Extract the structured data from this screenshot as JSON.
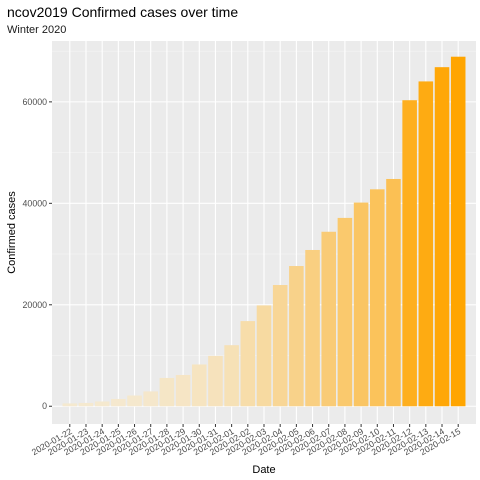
{
  "chart_data": {
    "type": "bar",
    "title": "ncov2019 Confirmed cases over time",
    "subtitle": "Winter 2020",
    "xlabel": "Date",
    "ylabel": "Confirmed cases",
    "ylim": [
      -3500,
      72000
    ],
    "yticks": [
      0,
      20000,
      40000,
      60000
    ],
    "ytick_labels": [
      "0",
      "20000",
      "40000",
      "60000"
    ],
    "grid": true,
    "legend": "none",
    "color_low": "#f5e9d0",
    "color_high": "#ffa500",
    "background": "#ebebeb",
    "categories": [
      "2020-01-22",
      "2020-01-23",
      "2020-01-24",
      "2020-01-25",
      "2020-01-26",
      "2020-01-27",
      "2020-01-28",
      "2020-01-29",
      "2020-01-30",
      "2020-01-31",
      "2020-02-01",
      "2020-02-02",
      "2020-02-03",
      "2020-02-04",
      "2020-02-05",
      "2020-02-06",
      "2020-02-07",
      "2020-02-08",
      "2020-02-09",
      "2020-02-10",
      "2020-02-11",
      "2020-02-12",
      "2020-02-13",
      "2020-02-14",
      "2020-02-15"
    ],
    "values": [
      555,
      653,
      941,
      1438,
      2118,
      2927,
      5578,
      6166,
      8234,
      9927,
      12038,
      16787,
      19887,
      23898,
      27643,
      30802,
      34395,
      37129,
      40150,
      42762,
      44802,
      60326,
      64032,
      66840,
      68902
    ]
  }
}
